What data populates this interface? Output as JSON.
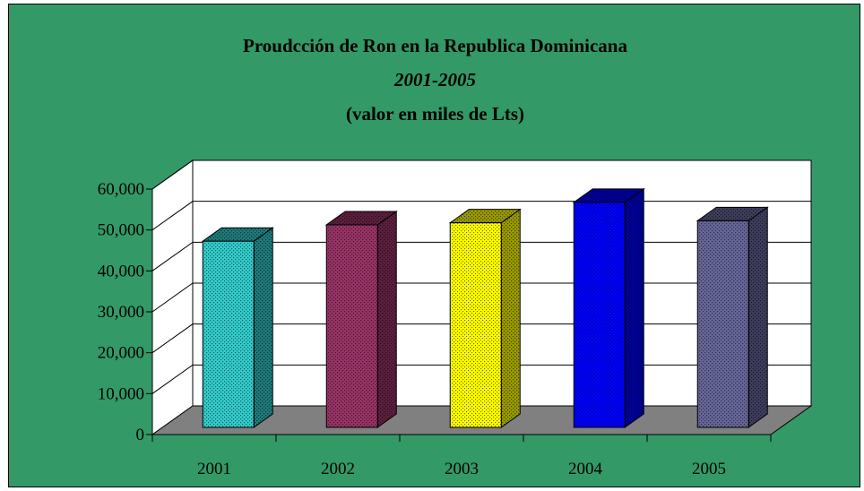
{
  "chart_data": {
    "type": "bar",
    "title_lines": [
      "Proudcción de Ron en la Republica Dominicana",
      "2001-2005",
      "(valor en miles de Lts)"
    ],
    "categories": [
      "2001",
      "2002",
      "2003",
      "2004",
      "2005"
    ],
    "values": [
      45500,
      49500,
      50000,
      55000,
      50500
    ],
    "ylim": [
      0,
      60000
    ],
    "yticks": [
      0,
      10000,
      20000,
      30000,
      40000,
      50000,
      60000
    ],
    "ytick_labels": [
      "0",
      "10,000",
      "20,000",
      "30,000",
      "40,000",
      "50,000",
      "60,000"
    ],
    "xlabel": "",
    "ylabel": "",
    "grid": true,
    "legend": "none",
    "bar_colors": [
      "#33CCCC",
      "#993366",
      "#FFFF00",
      "#0000FF",
      "#666699"
    ],
    "bar_side_colors": [
      "#1F7A7A",
      "#5C1F3D",
      "#999900",
      "#000099",
      "#3D3D5C"
    ],
    "background_color": "#339966",
    "wall_color": "#FFFFFF",
    "floor_color": "#808080"
  }
}
